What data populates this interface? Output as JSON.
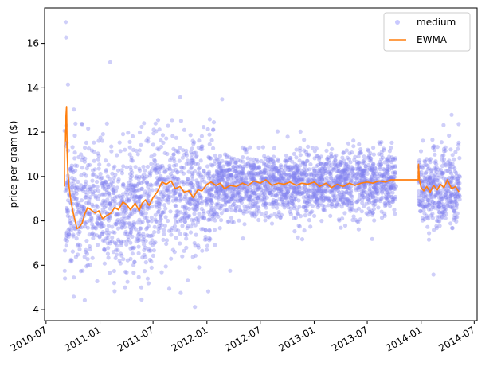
{
  "chart_data": {
    "type": "scatter",
    "ylabel": "price per gram ($)",
    "xlabel": "",
    "title": "",
    "ylim": [
      3.5,
      17.6
    ],
    "xlim": [
      "2010-06-26",
      "2014-07-11"
    ],
    "yticks": [
      4,
      6,
      8,
      10,
      12,
      14,
      16
    ],
    "xticks": [
      "2010-07",
      "2011-01",
      "2011-07",
      "2012-01",
      "2012-07",
      "2013-01",
      "2013-07",
      "2014-01",
      "2014-07"
    ],
    "grid": false,
    "legend": {
      "placement": "top-right",
      "entries": [
        {
          "label": "medium",
          "marker": "point",
          "color": "#8888ff"
        },
        {
          "label": "EWMA",
          "marker": "line",
          "color": "#ff7f0e"
        }
      ]
    },
    "colors": {
      "scatter": "#8080f0",
      "ewma": "#ff7f0e"
    },
    "series": [
      {
        "name": "medium",
        "kind": "scatter",
        "generation": {
          "segments": [
            {
              "start": "2010-09-02",
              "end": "2011-06-30",
              "center_start": 8.8,
              "center_end": 8.4,
              "spread": 1.5,
              "per_day": 2.4
            },
            {
              "start": "2011-07-01",
              "end": "2012-01-31",
              "center_start": 9.1,
              "center_end": 9.2,
              "spread": 1.4,
              "per_day": 2.4
            },
            {
              "start": "2012-02-01",
              "end": "2013-10-08",
              "center_start": 9.6,
              "center_end": 9.8,
              "spread": 0.75,
              "per_day": 2.8
            },
            {
              "start": "2013-12-23",
              "end": "2014-05-14",
              "center_start": 9.5,
              "center_end": 9.4,
              "spread": 0.85,
              "per_day": 2.8
            }
          ],
          "outliers": [
            {
              "x": "2010-09-06",
              "y": 16.96
            },
            {
              "x": "2010-09-07",
              "y": 16.27
            },
            {
              "x": "2010-09-14",
              "y": 14.15
            },
            {
              "x": "2010-10-04",
              "y": 13.02
            },
            {
              "x": "2011-02-05",
              "y": 15.15
            },
            {
              "x": "2011-10-02",
              "y": 13.57
            },
            {
              "x": "2012-02-22",
              "y": 13.48
            },
            {
              "x": "2011-05-23",
              "y": 4.45
            },
            {
              "x": "2011-11-21",
              "y": 4.12
            },
            {
              "x": "2010-11-10",
              "y": 4.42
            },
            {
              "x": "2014-04-15",
              "y": 12.78
            },
            {
              "x": "2014-02-12",
              "y": 5.58
            },
            {
              "x": "2012-03-20",
              "y": 5.75
            },
            {
              "x": "2011-04-05",
              "y": 5.25
            }
          ]
        }
      },
      {
        "name": "EWMA",
        "kind": "line",
        "points": [
          [
            "2010-09-02",
            9.55
          ],
          [
            "2010-09-03",
            12.1
          ],
          [
            "2010-09-05",
            11.6
          ],
          [
            "2010-09-07",
            12.75
          ],
          [
            "2010-09-09",
            13.15
          ],
          [
            "2010-09-11",
            11.2
          ],
          [
            "2010-09-14",
            10.1
          ],
          [
            "2010-09-18",
            9.5
          ],
          [
            "2010-09-24",
            8.9
          ],
          [
            "2010-10-01",
            8.4
          ],
          [
            "2010-10-08",
            8.0
          ],
          [
            "2010-10-15",
            7.65
          ],
          [
            "2010-10-22",
            7.7
          ],
          [
            "2010-11-01",
            7.9
          ],
          [
            "2010-11-10",
            8.3
          ],
          [
            "2010-11-20",
            8.6
          ],
          [
            "2010-12-01",
            8.5
          ],
          [
            "2010-12-15",
            8.35
          ],
          [
            "2010-12-28",
            8.45
          ],
          [
            "2011-01-10",
            8.1
          ],
          [
            "2011-01-25",
            8.25
          ],
          [
            "2011-02-08",
            8.35
          ],
          [
            "2011-02-20",
            8.6
          ],
          [
            "2011-03-05",
            8.5
          ],
          [
            "2011-03-20",
            8.85
          ],
          [
            "2011-04-01",
            8.75
          ],
          [
            "2011-04-15",
            8.5
          ],
          [
            "2011-05-01",
            8.8
          ],
          [
            "2011-05-15",
            8.45
          ],
          [
            "2011-05-25",
            8.8
          ],
          [
            "2011-06-05",
            8.95
          ],
          [
            "2011-06-18",
            8.7
          ],
          [
            "2011-07-01",
            9.05
          ],
          [
            "2011-07-15",
            9.3
          ],
          [
            "2011-08-01",
            9.75
          ],
          [
            "2011-08-15",
            9.65
          ],
          [
            "2011-09-01",
            9.8
          ],
          [
            "2011-09-15",
            9.45
          ],
          [
            "2011-10-01",
            9.55
          ],
          [
            "2011-10-15",
            9.3
          ],
          [
            "2011-11-01",
            9.35
          ],
          [
            "2011-11-15",
            9.05
          ],
          [
            "2011-12-01",
            9.4
          ],
          [
            "2011-12-15",
            9.35
          ],
          [
            "2012-01-01",
            9.65
          ],
          [
            "2012-01-15",
            9.75
          ],
          [
            "2012-02-01",
            9.6
          ],
          [
            "2012-02-15",
            9.7
          ],
          [
            "2012-03-01",
            9.45
          ],
          [
            "2012-03-20",
            9.6
          ],
          [
            "2012-04-10",
            9.55
          ],
          [
            "2012-05-01",
            9.7
          ],
          [
            "2012-05-20",
            9.6
          ],
          [
            "2012-06-10",
            9.8
          ],
          [
            "2012-07-01",
            9.7
          ],
          [
            "2012-07-20",
            9.85
          ],
          [
            "2012-08-10",
            9.6
          ],
          [
            "2012-09-01",
            9.7
          ],
          [
            "2012-09-20",
            9.65
          ],
          [
            "2012-10-10",
            9.75
          ],
          [
            "2012-11-01",
            9.6
          ],
          [
            "2012-11-20",
            9.7
          ],
          [
            "2012-12-10",
            9.65
          ],
          [
            "2013-01-01",
            9.75
          ],
          [
            "2013-01-20",
            9.55
          ],
          [
            "2013-02-10",
            9.7
          ],
          [
            "2013-03-01",
            9.5
          ],
          [
            "2013-03-20",
            9.65
          ],
          [
            "2013-04-10",
            9.55
          ],
          [
            "2013-05-01",
            9.7
          ],
          [
            "2013-05-20",
            9.6
          ],
          [
            "2013-06-10",
            9.7
          ],
          [
            "2013-07-01",
            9.75
          ],
          [
            "2013-07-20",
            9.7
          ],
          [
            "2013-08-10",
            9.8
          ],
          [
            "2013-09-01",
            9.75
          ],
          [
            "2013-09-20",
            9.85
          ],
          [
            "2013-10-08",
            9.85
          ],
          [
            "2013-12-22",
            9.85
          ],
          [
            "2013-12-23",
            10.55
          ],
          [
            "2013-12-26",
            9.85
          ],
          [
            "2014-01-01",
            9.5
          ],
          [
            "2014-01-10",
            9.35
          ],
          [
            "2014-01-20",
            9.55
          ],
          [
            "2014-02-01",
            9.3
          ],
          [
            "2014-02-12",
            9.6
          ],
          [
            "2014-02-25",
            9.4
          ],
          [
            "2014-03-08",
            9.65
          ],
          [
            "2014-03-20",
            9.5
          ],
          [
            "2014-04-01",
            9.85
          ],
          [
            "2014-04-15",
            9.45
          ],
          [
            "2014-04-28",
            9.55
          ],
          [
            "2014-05-10",
            9.3
          ]
        ]
      }
    ]
  }
}
